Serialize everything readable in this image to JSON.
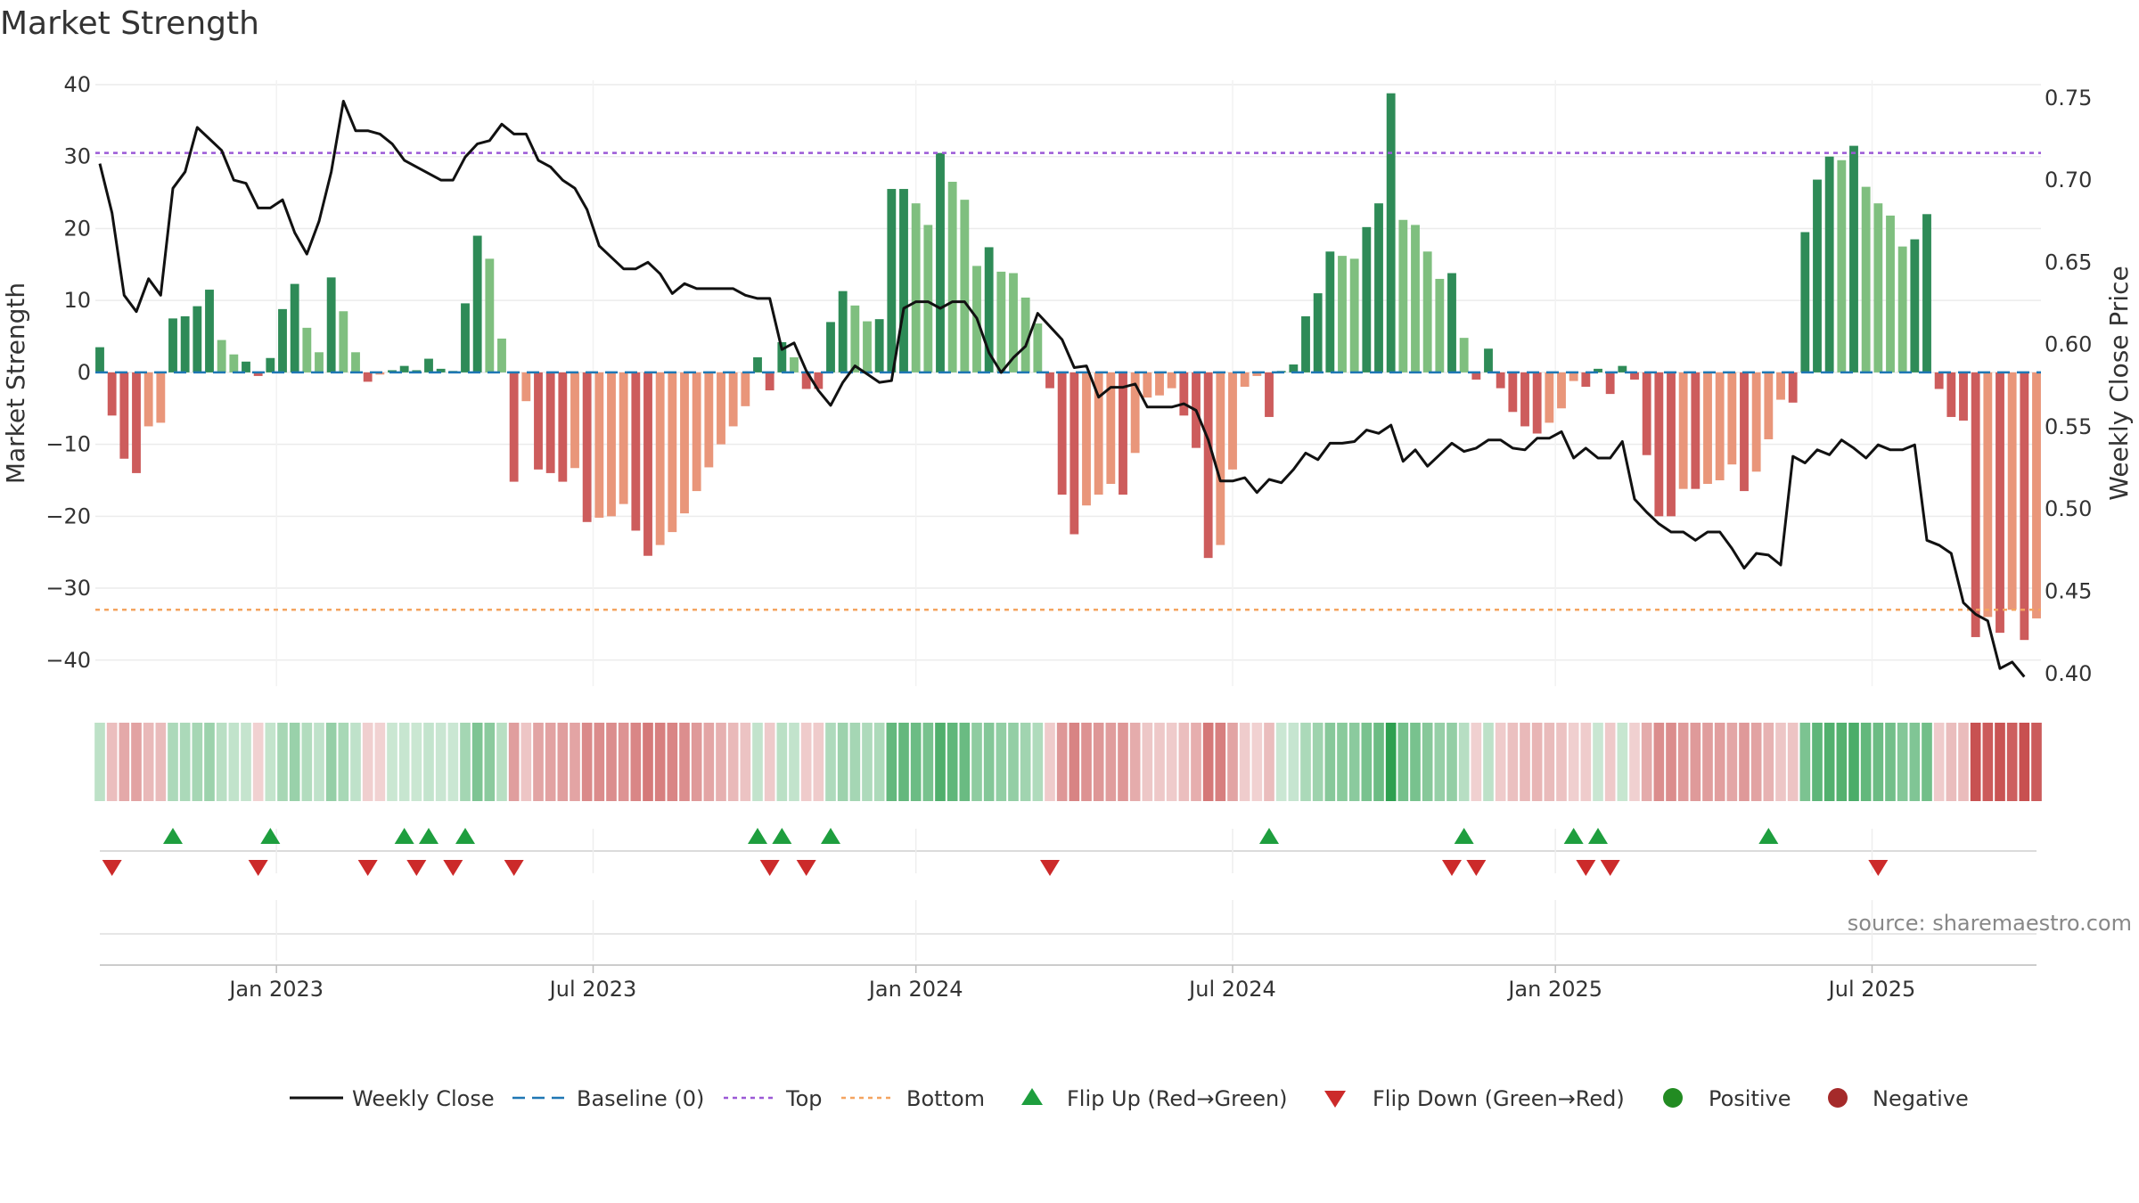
{
  "chart_data": {
    "type": "bar",
    "title": "Market Strength",
    "ylabel_left": "Market Strength",
    "ylabel_right": "Weekly Close Price",
    "left_axis": {
      "ylim": [
        -43,
        40
      ],
      "ticks": [
        40,
        30,
        20,
        10,
        0,
        -10,
        -20,
        -30,
        -40
      ],
      "tick_labels": [
        "40",
        "30",
        "20",
        "10",
        "0",
        "−10",
        "−20",
        "−30",
        "−40"
      ]
    },
    "right_axis": {
      "ylim": [
        0.395,
        0.758
      ],
      "ticks": [
        0.75,
        0.7,
        0.65,
        0.6,
        0.55,
        0.5,
        0.45,
        0.4
      ],
      "tick_labels": [
        "0.75",
        "0.70",
        "0.65",
        "0.60",
        "0.55",
        "0.50",
        "0.45",
        "0.40"
      ]
    },
    "x_axis": {
      "start_week_index": 0,
      "end_week_index": 157,
      "tick_labels": [
        "Jan 2023",
        "Jul 2023",
        "Jan 2024",
        "Jul 2024",
        "Jan 2025",
        "Jul 2025"
      ],
      "tick_week_index": [
        14.5,
        40.5,
        67,
        93,
        119.5,
        145.5
      ]
    },
    "top_level": 30.5,
    "bottom_level": -33,
    "baseline": 0,
    "series": [
      {
        "name": "Market Strength",
        "values": [
          3.5,
          -6,
          -12,
          -14,
          -7.5,
          -7,
          7.5,
          7.8,
          9.2,
          11.5,
          4.5,
          2.5,
          1.5,
          -0.5,
          2,
          8.8,
          12.3,
          6.2,
          2.8,
          13.2,
          8.5,
          2.8,
          -1.3,
          -0.3,
          0.3,
          0.9,
          0.3,
          1.9,
          0.5,
          0.2,
          9.6,
          19,
          15.8,
          4.7,
          -15.2,
          -4,
          -13.5,
          -14,
          -15.2,
          -13.3,
          -20.8,
          -20.2,
          -20,
          -18.3,
          -22,
          -25.5,
          -24,
          -22.2,
          -19.6,
          -16.5,
          -13.2,
          -10,
          -7.5,
          -4.7,
          2.1,
          -2.5,
          4.2,
          2.1,
          -2.3,
          -2.3,
          7,
          11.3,
          9.3,
          7.1,
          7.4,
          25.5,
          25.5,
          23.5,
          20.5,
          30.5,
          26.5,
          24,
          14.8,
          17.4,
          14,
          13.8,
          10.4,
          6.8,
          -2.2,
          -17,
          -22.5,
          -18.5,
          -17,
          -15.5,
          -17,
          -11.2,
          -3.5,
          -3.2,
          -2.2,
          -6,
          -10.5,
          -25.8,
          -24,
          -13.5,
          -2,
          -0.5,
          -6.2,
          0.2,
          1.1,
          7.8,
          11,
          16.8,
          16.2,
          15.8,
          20.2,
          23.5,
          38.8,
          21.2,
          20.5,
          16.8,
          13,
          13.8,
          4.8,
          -1,
          3.3,
          -2.2,
          -5.5,
          -7.5,
          -8.5,
          -7,
          -5,
          -1.2,
          -2,
          0.5,
          -3,
          0.9,
          -1,
          -11.5,
          -20,
          -20,
          -16.2,
          -16.2,
          -15.5,
          -15,
          -12.8,
          -16.5,
          -13.8,
          -9.3,
          -3.8,
          -4.2,
          19.5,
          26.8,
          30,
          29.5,
          31.5,
          25.8,
          23.5,
          21.8,
          17.5,
          18.5,
          22,
          -2.3,
          -6.2,
          -6.7,
          -36.8,
          -34,
          -36.2,
          -33,
          -37.2,
          -34.2
        ]
      },
      {
        "name": "Weekly Close",
        "values": [
          0.71,
          0.68,
          0.63,
          0.62,
          0.64,
          0.63,
          0.695,
          0.705,
          0.732,
          0.725,
          0.718,
          0.7,
          0.698,
          0.683,
          0.683,
          0.688,
          0.668,
          0.655,
          0.675,
          0.705,
          0.748,
          0.73,
          0.73,
          0.728,
          0.722,
          0.712,
          0.708,
          0.704,
          0.7,
          0.7,
          0.714,
          0.722,
          0.724,
          0.734,
          0.728,
          0.728,
          0.712,
          0.708,
          0.7,
          0.695,
          0.682,
          0.66,
          0.653,
          0.646,
          0.646,
          0.65,
          0.643,
          0.631,
          0.637,
          0.634,
          0.634,
          0.634,
          0.634,
          0.63,
          0.628,
          0.628,
          0.597,
          0.601,
          0.584,
          0.572,
          0.563,
          0.577,
          0.587,
          0.582,
          0.577,
          0.578,
          0.622,
          0.626,
          0.626,
          0.622,
          0.626,
          0.626,
          0.616,
          0.595,
          0.583,
          0.592,
          0.599,
          0.619,
          0.611,
          0.603,
          0.586,
          0.587,
          0.568,
          0.574,
          0.574,
          0.576,
          0.562,
          0.562,
          0.562,
          0.564,
          0.56,
          0.542,
          0.517,
          0.517,
          0.519,
          0.51,
          0.518,
          0.516,
          0.524,
          0.534,
          0.53,
          0.54,
          0.54,
          0.541,
          0.548,
          0.546,
          0.551,
          0.529,
          0.536,
          0.526,
          0.533,
          0.54,
          0.535,
          0.537,
          0.542,
          0.542,
          0.537,
          0.536,
          0.543,
          0.543,
          0.547,
          0.531,
          0.537,
          0.531,
          0.531,
          0.541,
          0.506,
          0.498,
          0.491,
          0.486,
          0.486,
          0.481,
          0.486,
          0.486,
          0.476,
          0.464,
          0.473,
          0.472,
          0.466,
          0.532,
          0.528,
          0.536,
          0.533,
          0.542,
          0.537,
          0.531,
          0.539,
          0.536,
          0.536,
          0.539,
          0.481,
          0.478,
          0.473,
          0.443,
          0.436,
          0.432,
          0.403,
          0.407,
          0.398
        ]
      },
      {
        "name": "Baseline (0)",
        "values": [
          0
        ]
      },
      {
        "name": "Top",
        "values": [
          30.5
        ]
      },
      {
        "name": "Bottom",
        "values": [
          -33
        ]
      }
    ],
    "regime_strip": {
      "description": "colored weekly strip; shade follows market strength value",
      "values_ref": "Market Strength"
    },
    "flip_up_weeks": [
      6,
      14,
      25,
      27,
      30,
      54,
      56,
      60,
      96,
      112,
      121,
      123,
      137
    ],
    "flip_down_weeks": [
      1,
      13,
      22,
      26,
      29,
      34,
      55,
      58,
      78,
      111,
      113,
      122,
      124,
      146
    ],
    "legend": {
      "position": "bottom-center",
      "entries": [
        "Weekly Close",
        "Baseline (0)",
        "Top",
        "Bottom",
        "Flip Up (Red→Green)",
        "Flip Down (Green→Red)",
        "Positive",
        "Negative"
      ]
    },
    "colors": {
      "pos_strong": "#2e8b57",
      "pos_light": "#7fbf7f",
      "neg_strong": "#cd5c5c",
      "neg_light": "#e9967a",
      "close_line": "#111111",
      "baseline": "#1f77b4",
      "top": "#9b59d6",
      "bottom": "#f4a460",
      "flip_up": "#1e9e3e",
      "flip_down": "#cc2a2a",
      "positive_dot": "#228b22",
      "negative_dot": "#a52a2a"
    },
    "source": "source: sharemaestro.com"
  }
}
